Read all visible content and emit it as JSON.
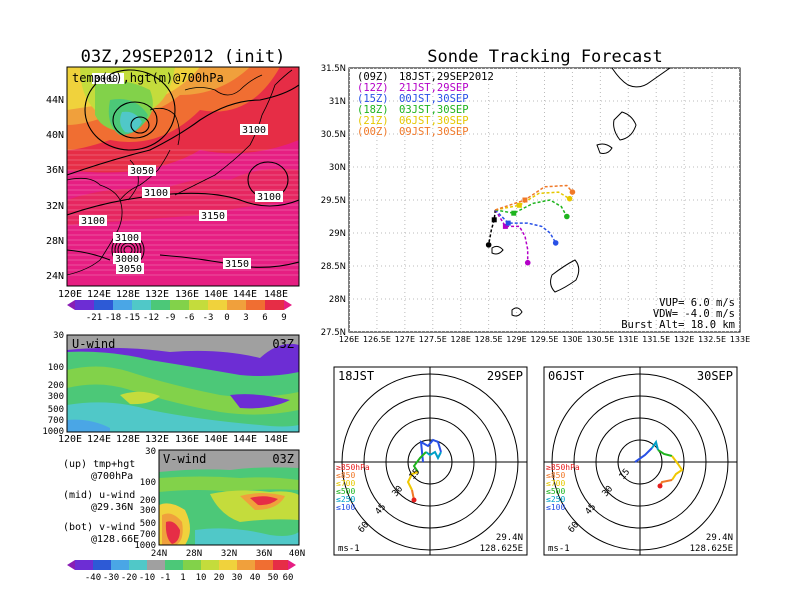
{
  "left_title": "03Z,29SEP2012 (init)",
  "right_title": "Sonde Tracking Forecast",
  "map_panel": {
    "label": "temp(C),hgt(m)@700hPa",
    "lat_ticks": [
      "44N",
      "40N",
      "36N",
      "32N",
      "28N",
      "24N"
    ],
    "lon_ticks": [
      "120E",
      "124E",
      "128E",
      "132E",
      "136E",
      "140E",
      "144E",
      "148E"
    ],
    "contour_labels": [
      "3000",
      "3050",
      "3100",
      "3100",
      "3100",
      "3100",
      "3150",
      "3150",
      "3100",
      "3000",
      "3050"
    ],
    "colorbar_ticks": [
      "-21",
      "-18",
      "-15",
      "-12",
      "-9",
      "-6",
      "-3",
      "0",
      "3",
      "6",
      "9"
    ],
    "colors": [
      "#8a1db4",
      "#6d2dd4",
      "#2d5ad6",
      "#4aa6e6",
      "#50c8c8",
      "#4cc878",
      "#82d24a",
      "#c4dc3c",
      "#f0d23c",
      "#f0a03c",
      "#f06e32",
      "#e62d46",
      "#e61e82"
    ]
  },
  "uwind_panel": {
    "label": "U-wind",
    "time": "03Z",
    "p_ticks": [
      "30",
      "100",
      "200",
      "300",
      "500",
      "700",
      "1000"
    ],
    "lon_ticks": [
      "120E",
      "124E",
      "128E",
      "132E",
      "136E",
      "140E",
      "144E",
      "148E"
    ]
  },
  "vwind_panel": {
    "label": "V-wind",
    "time": "03Z",
    "p_ticks": [
      "30",
      "100",
      "200",
      "300",
      "500",
      "700",
      "1000"
    ],
    "lat_ticks": [
      "24N",
      "28N",
      "32N",
      "36N",
      "40N"
    ],
    "colorbar_ticks": [
      "-40",
      "-30",
      "-20",
      "-10",
      "-1",
      "1",
      "10",
      "20",
      "30",
      "40",
      "50",
      "60"
    ]
  },
  "notes": [
    {
      "a": "(up) tmp+hgt",
      "b": "@700hPa"
    },
    {
      "a": "(mid) u-wind",
      "b": "@29.36N"
    },
    {
      "a": "(bot) v-wind",
      "b": "@128.66E"
    }
  ],
  "chart_data": [
    {
      "type": "scatter",
      "title": "Sonde Tracking Forecast",
      "xlim": [
        126,
        133
      ],
      "ylim": [
        27.5,
        31.5
      ],
      "x_ticks": [
        "126E",
        "126.5E",
        "127E",
        "127.5E",
        "128E",
        "128.5E",
        "129E",
        "129.5E",
        "130E",
        "130.5E",
        "131E",
        "131.5E",
        "132E",
        "132.5E",
        "133E"
      ],
      "y_ticks": [
        "31.5N",
        "31N",
        "30.5N",
        "30N",
        "29.5N",
        "29N",
        "28.5N",
        "28N",
        "27.5N"
      ],
      "legend": [
        {
          "code": "(09Z)",
          "text": "18JST,29SEP2012",
          "color": "#000000"
        },
        {
          "code": "(12Z)",
          "text": "21JST,29SEP",
          "color": "#b400c8"
        },
        {
          "code": "(15Z)",
          "text": "00JST,30SEP",
          "color": "#2850e6"
        },
        {
          "code": "(18Z)",
          "text": "03JST,30SEP",
          "color": "#1eb41e"
        },
        {
          "code": "(21Z)",
          "text": "06JST,30SEP",
          "color": "#e6c800"
        },
        {
          "code": "(00Z)",
          "text": "09JST,30SEP",
          "color": "#f07828"
        }
      ],
      "series": [
        {
          "name": "18JST,29SEP2012",
          "color": "#000000",
          "start": [
            128.62,
            29.35
          ],
          "points": [
            [
              128.6,
              29.2
            ],
            [
              128.55,
              29.05
            ],
            [
              128.5,
              28.82
            ]
          ]
        },
        {
          "name": "21JST,29SEP",
          "color": "#b400c8",
          "points": [
            [
              128.8,
              29.1
            ],
            [
              129.05,
              29.1
            ],
            [
              129.15,
              28.95
            ],
            [
              129.2,
              28.75
            ],
            [
              129.2,
              28.55
            ]
          ]
        },
        {
          "name": "00JST,30SEP",
          "color": "#2850e6",
          "points": [
            [
              128.85,
              29.15
            ],
            [
              129.2,
              29.15
            ],
            [
              129.45,
              29.1
            ],
            [
              129.6,
              29.0
            ],
            [
              129.7,
              28.85
            ]
          ]
        },
        {
          "name": "03JST,30SEP",
          "color": "#1eb41e",
          "points": [
            [
              128.95,
              29.3
            ],
            [
              129.3,
              29.45
            ],
            [
              129.6,
              29.5
            ],
            [
              129.8,
              29.4
            ],
            [
              129.9,
              29.25
            ]
          ]
        },
        {
          "name": "06JST,30SEP",
          "color": "#e6c800",
          "points": [
            [
              129.05,
              29.42
            ],
            [
              129.4,
              29.6
            ],
            [
              129.75,
              29.62
            ],
            [
              129.95,
              29.52
            ]
          ]
        },
        {
          "name": "09JST,30SEP",
          "color": "#f07828",
          "points": [
            [
              129.15,
              29.5
            ],
            [
              129.5,
              29.7
            ],
            [
              129.9,
              29.72
            ],
            [
              130.0,
              29.62
            ]
          ]
        }
      ],
      "annotations": [
        "VUP= 6.0 m/s",
        "VDW= -4.0 m/s",
        "Burst Alt= 18.0 km"
      ]
    },
    {
      "type": "hodograph",
      "label_left": "18JST",
      "label_right": "29SEP",
      "ring_labels": [
        "15",
        "30",
        "45",
        "60"
      ],
      "unit": "ms-1",
      "location": [
        "29.4N",
        "128.625E"
      ],
      "level_legend": [
        "≥850hPa",
        "≤850",
        "≤700",
        "≤500",
        "≤250",
        "≤100"
      ]
    },
    {
      "type": "hodograph",
      "label_left": "06JST",
      "label_right": "30SEP",
      "ring_labels": [
        "15",
        "30",
        "45",
        "60"
      ],
      "unit": "ms-1",
      "location": [
        "29.4N",
        "128.625E"
      ],
      "level_legend": [
        "≥850hPa",
        "≤850",
        "≤700",
        "≤500",
        "≤250",
        "≤100"
      ]
    }
  ]
}
